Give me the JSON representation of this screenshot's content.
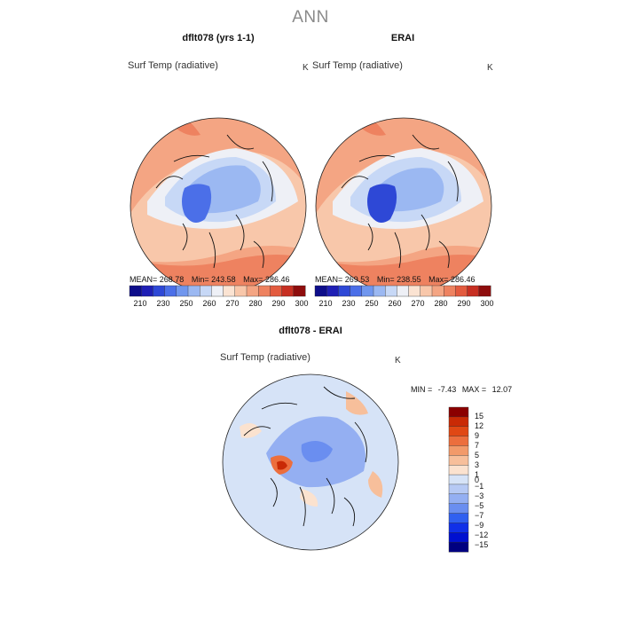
{
  "colors": {
    "abs_scale": [
      "#0d0d8a",
      "#1f1fb5",
      "#2e48d6",
      "#4b6fe8",
      "#7096ee",
      "#9bb8f2",
      "#c7d8f6",
      "#eef0f6",
      "#fbe3d2",
      "#f8c7aa",
      "#f4a583",
      "#ee8260",
      "#e35b3f",
      "#c72f22",
      "#8e0d0d"
    ],
    "diff_scale": [
      "#000080",
      "#0010d0",
      "#1030e8",
      "#3060f0",
      "#6a8ef0",
      "#94aff2",
      "#b6c9f4",
      "#d6e3f7",
      "#fbe2cf",
      "#f7bf9b",
      "#f29a6a",
      "#ec6e3d",
      "#e04814",
      "#c92a05",
      "#8b0000"
    ],
    "title_gray": "#8a8a8a"
  },
  "main_title": "ANN",
  "panels": [
    {
      "title": "dflt078 (yrs 1-1)",
      "variable": "Surf Temp (radiative)",
      "units": "K",
      "mean_label": "MEAN=",
      "mean": "268.78",
      "min_label": "Min=",
      "min": "243.58",
      "max_label": "Max=",
      "max": "286.46"
    },
    {
      "title": "ERAI",
      "variable": "Surf Temp (radiative)",
      "units": "K",
      "mean_label": "MEAN=",
      "mean": "269.53",
      "min_label": "Min=",
      "min": "238.55",
      "max_label": "Max=",
      "max": "286.46"
    }
  ],
  "abs_colorbar": {
    "ticks": [
      "210",
      "230",
      "250",
      "260",
      "270",
      "280",
      "290",
      "300"
    ]
  },
  "diff_panel": {
    "title": "dflt078 - ERAI",
    "variable": "Surf Temp (radiative)",
    "units": "K",
    "min_label": "MIN =",
    "min": "-7.43",
    "max_label": "MAX =",
    "max": "12.07",
    "colorbar_ticks": [
      "15",
      "12",
      "9",
      "7",
      "5",
      "3",
      "1",
      "0",
      "−1",
      "−3",
      "−5",
      "−7",
      "−9",
      "−12",
      "−15"
    ]
  },
  "chart_data": [
    {
      "type": "heatmap",
      "title": "dflt078 (yrs 1-1)",
      "subtitle": "Surf Temp (radiative)",
      "units": "K",
      "projection": "north polar stereographic",
      "stats": {
        "mean": 268.78,
        "min": 243.58,
        "max": 286.46
      },
      "colorbar_levels": [
        210,
        230,
        250,
        260,
        270,
        280,
        290,
        300
      ]
    },
    {
      "type": "heatmap",
      "title": "ERAI",
      "subtitle": "Surf Temp (radiative)",
      "units": "K",
      "projection": "north polar stereographic",
      "stats": {
        "mean": 269.53,
        "min": 238.55,
        "max": 286.46
      },
      "colorbar_levels": [
        210,
        230,
        250,
        260,
        270,
        280,
        290,
        300
      ]
    },
    {
      "type": "heatmap",
      "title": "dflt078 - ERAI",
      "subtitle": "Surf Temp (radiative)",
      "units": "K",
      "projection": "north polar stereographic",
      "stats": {
        "min": -7.43,
        "max": 12.07
      },
      "colorbar_levels": [
        15,
        12,
        9,
        7,
        5,
        3,
        1,
        0,
        -1,
        -3,
        -5,
        -7,
        -9,
        -12,
        -15
      ]
    }
  ]
}
